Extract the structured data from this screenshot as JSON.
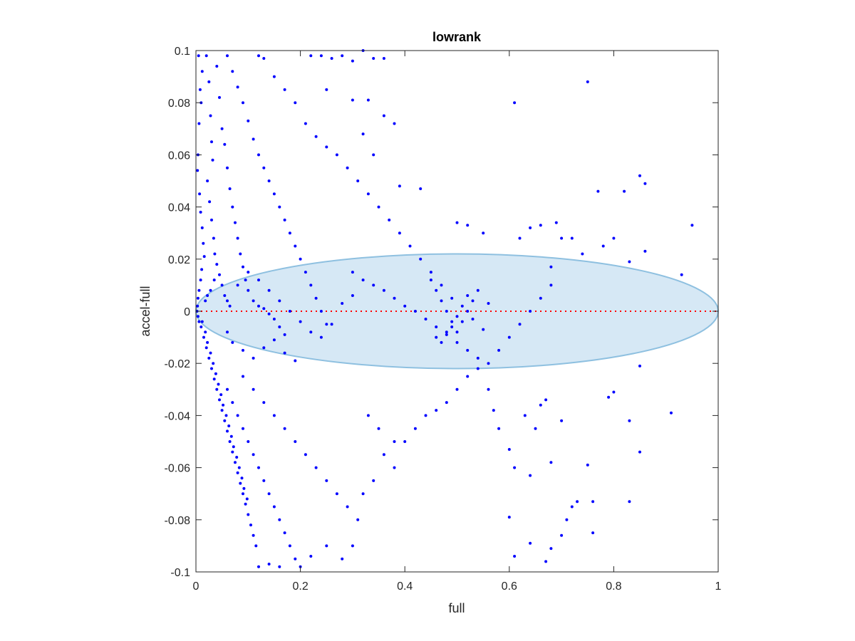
{
  "chart_data": {
    "type": "scatter",
    "title": "lowrank",
    "xlabel": "full",
    "ylabel": "accel-full",
    "xlim": [
      0,
      1
    ],
    "ylim": [
      -0.1,
      0.1
    ],
    "grid": false,
    "legend": "none",
    "x_ticks": [
      0,
      0.2,
      0.4,
      0.6,
      0.8,
      1
    ],
    "x_tick_labels": [
      "0",
      "0.2",
      "0.4",
      "0.6",
      "0.8",
      "1"
    ],
    "y_ticks": [
      -0.1,
      -0.08,
      -0.06,
      -0.04,
      -0.02,
      0,
      0.02,
      0.04,
      0.06,
      0.08,
      0.1
    ],
    "y_tick_labels": [
      "-0.1",
      "-0.08",
      "-0.06",
      "-0.04",
      "-0.02",
      "0",
      "0.02",
      "0.04",
      "0.06",
      "0.08",
      "0.1"
    ],
    "colors": {
      "points": "#0000ff",
      "ellipse_fill": "#d6e8f5",
      "ellipse_stroke": "#8ec0e0",
      "zero_line": "#ff0000",
      "axes": "#262626"
    },
    "ellipse": {
      "cx": 0.5,
      "cy": 0,
      "rx": 0.5,
      "ry": 0.022
    },
    "reference_line": {
      "y": 0,
      "x_from": 0,
      "x_to": 1
    },
    "points": [
      [
        0.005,
        0.098
      ],
      [
        0.012,
        0.092
      ],
      [
        0.008,
        0.085
      ],
      [
        0.01,
        0.08
      ],
      [
        0.006,
        0.072
      ],
      [
        0.004,
        0.06
      ],
      [
        0.003,
        0.054
      ],
      [
        0.007,
        0.045
      ],
      [
        0.009,
        0.038
      ],
      [
        0.012,
        0.032
      ],
      [
        0.014,
        0.026
      ],
      [
        0.016,
        0.021
      ],
      [
        0.011,
        0.016
      ],
      [
        0.009,
        0.012
      ],
      [
        0.006,
        0.008
      ],
      [
        0.004,
        0.005
      ],
      [
        0.003,
        0.002
      ],
      [
        0.002,
        0.0
      ],
      [
        0.004,
        -0.002
      ],
      [
        0.006,
        -0.004
      ],
      [
        0.02,
        0.098
      ],
      [
        0.025,
        0.088
      ],
      [
        0.028,
        0.075
      ],
      [
        0.03,
        0.065
      ],
      [
        0.032,
        0.058
      ],
      [
        0.022,
        0.05
      ],
      [
        0.026,
        0.042
      ],
      [
        0.03,
        0.035
      ],
      [
        0.034,
        0.028
      ],
      [
        0.036,
        0.022
      ],
      [
        0.04,
        0.018
      ],
      [
        0.045,
        0.014
      ],
      [
        0.05,
        0.01
      ],
      [
        0.055,
        0.006
      ],
      [
        0.06,
        0.004
      ],
      [
        0.065,
        0.002
      ],
      [
        0.035,
        0.012
      ],
      [
        0.028,
        0.008
      ],
      [
        0.022,
        0.006
      ],
      [
        0.018,
        0.004
      ],
      [
        0.04,
        0.094
      ],
      [
        0.045,
        0.082
      ],
      [
        0.05,
        0.07
      ],
      [
        0.055,
        0.064
      ],
      [
        0.06,
        0.055
      ],
      [
        0.065,
        0.047
      ],
      [
        0.07,
        0.04
      ],
      [
        0.075,
        0.034
      ],
      [
        0.08,
        0.028
      ],
      [
        0.085,
        0.022
      ],
      [
        0.09,
        0.017
      ],
      [
        0.095,
        0.012
      ],
      [
        0.1,
        0.008
      ],
      [
        0.11,
        0.004
      ],
      [
        0.12,
        0.002
      ],
      [
        0.13,
        0.001
      ],
      [
        0.14,
        -0.001
      ],
      [
        0.15,
        -0.003
      ],
      [
        0.16,
        -0.006
      ],
      [
        0.17,
        -0.009
      ],
      [
        0.06,
        0.098
      ],
      [
        0.07,
        0.092
      ],
      [
        0.08,
        0.086
      ],
      [
        0.09,
        0.08
      ],
      [
        0.1,
        0.073
      ],
      [
        0.11,
        0.066
      ],
      [
        0.12,
        0.06
      ],
      [
        0.13,
        0.055
      ],
      [
        0.14,
        0.05
      ],
      [
        0.15,
        0.045
      ],
      [
        0.16,
        0.04
      ],
      [
        0.17,
        0.035
      ],
      [
        0.18,
        0.03
      ],
      [
        0.19,
        0.025
      ],
      [
        0.2,
        0.02
      ],
      [
        0.21,
        0.015
      ],
      [
        0.22,
        0.01
      ],
      [
        0.23,
        0.005
      ],
      [
        0.24,
        0.0
      ],
      [
        0.25,
        -0.005
      ],
      [
        0.12,
        0.098
      ],
      [
        0.13,
        0.097
      ],
      [
        0.15,
        0.09
      ],
      [
        0.17,
        0.085
      ],
      [
        0.19,
        0.08
      ],
      [
        0.21,
        0.072
      ],
      [
        0.23,
        0.067
      ],
      [
        0.25,
        0.063
      ],
      [
        0.27,
        0.06
      ],
      [
        0.29,
        0.055
      ],
      [
        0.31,
        0.05
      ],
      [
        0.33,
        0.045
      ],
      [
        0.35,
        0.04
      ],
      [
        0.37,
        0.035
      ],
      [
        0.39,
        0.03
      ],
      [
        0.41,
        0.025
      ],
      [
        0.43,
        0.02
      ],
      [
        0.45,
        0.015
      ],
      [
        0.47,
        0.01
      ],
      [
        0.49,
        0.005
      ],
      [
        0.22,
        0.098
      ],
      [
        0.24,
        0.098
      ],
      [
        0.26,
        0.097
      ],
      [
        0.28,
        0.098
      ],
      [
        0.3,
        0.096
      ],
      [
        0.32,
        0.1
      ],
      [
        0.34,
        0.097
      ],
      [
        0.36,
        0.097
      ],
      [
        0.25,
        0.085
      ],
      [
        0.3,
        0.081
      ],
      [
        0.33,
        0.081
      ],
      [
        0.36,
        0.075
      ],
      [
        0.38,
        0.072
      ],
      [
        0.32,
        0.068
      ],
      [
        0.34,
        0.06
      ],
      [
        0.39,
        0.048
      ],
      [
        0.43,
        0.047
      ],
      [
        0.5,
        0.034
      ],
      [
        0.52,
        0.033
      ],
      [
        0.55,
        0.03
      ],
      [
        0.61,
        0.08
      ],
      [
        0.75,
        0.088
      ],
      [
        0.77,
        0.046
      ],
      [
        0.82,
        0.046
      ],
      [
        0.85,
        0.052
      ],
      [
        0.86,
        0.049
      ],
      [
        0.95,
        0.033
      ],
      [
        0.69,
        0.034
      ],
      [
        0.66,
        0.033
      ],
      [
        0.64,
        0.032
      ],
      [
        0.62,
        0.028
      ],
      [
        0.7,
        0.028
      ],
      [
        0.72,
        0.028
      ],
      [
        0.74,
        0.022
      ],
      [
        0.78,
        0.025
      ],
      [
        0.8,
        0.028
      ],
      [
        0.86,
        0.023
      ],
      [
        0.83,
        0.019
      ],
      [
        0.93,
        0.014
      ],
      [
        0.68,
        0.017
      ],
      [
        0.3,
        0.015
      ],
      [
        0.32,
        0.012
      ],
      [
        0.34,
        0.01
      ],
      [
        0.36,
        0.008
      ],
      [
        0.38,
        0.005
      ],
      [
        0.4,
        0.002
      ],
      [
        0.42,
        0.0
      ],
      [
        0.44,
        -0.003
      ],
      [
        0.46,
        -0.006
      ],
      [
        0.48,
        -0.009
      ],
      [
        0.5,
        -0.012
      ],
      [
        0.52,
        -0.015
      ],
      [
        0.54,
        -0.018
      ],
      [
        0.56,
        -0.02
      ],
      [
        0.58,
        -0.015
      ],
      [
        0.6,
        -0.01
      ],
      [
        0.62,
        -0.005
      ],
      [
        0.64,
        0.0
      ],
      [
        0.66,
        0.005
      ],
      [
        0.68,
        0.01
      ],
      [
        0.45,
        0.012
      ],
      [
        0.46,
        0.008
      ],
      [
        0.47,
        0.004
      ],
      [
        0.48,
        0.0
      ],
      [
        0.49,
        -0.004
      ],
      [
        0.5,
        -0.008
      ],
      [
        0.51,
        -0.004
      ],
      [
        0.52,
        0.0
      ],
      [
        0.53,
        0.004
      ],
      [
        0.54,
        0.008
      ],
      [
        0.46,
        -0.01
      ],
      [
        0.47,
        -0.012
      ],
      [
        0.48,
        -0.008
      ],
      [
        0.49,
        -0.006
      ],
      [
        0.5,
        -0.002
      ],
      [
        0.51,
        0.002
      ],
      [
        0.52,
        0.006
      ],
      [
        0.53,
        -0.003
      ],
      [
        0.55,
        -0.007
      ],
      [
        0.56,
        0.003
      ],
      [
        0.12,
        0.012
      ],
      [
        0.14,
        0.008
      ],
      [
        0.16,
        0.004
      ],
      [
        0.18,
        0.0
      ],
      [
        0.2,
        -0.004
      ],
      [
        0.22,
        -0.008
      ],
      [
        0.24,
        -0.01
      ],
      [
        0.26,
        -0.005
      ],
      [
        0.28,
        0.003
      ],
      [
        0.3,
        0.006
      ],
      [
        0.1,
        0.015
      ],
      [
        0.08,
        0.01
      ],
      [
        0.06,
        -0.008
      ],
      [
        0.07,
        -0.012
      ],
      [
        0.09,
        -0.015
      ],
      [
        0.11,
        -0.018
      ],
      [
        0.13,
        -0.014
      ],
      [
        0.15,
        -0.011
      ],
      [
        0.17,
        -0.016
      ],
      [
        0.19,
        -0.019
      ],
      [
        0.01,
        -0.006
      ],
      [
        0.015,
        -0.01
      ],
      [
        0.02,
        -0.014
      ],
      [
        0.025,
        -0.018
      ],
      [
        0.03,
        -0.022
      ],
      [
        0.035,
        -0.026
      ],
      [
        0.04,
        -0.03
      ],
      [
        0.045,
        -0.034
      ],
      [
        0.05,
        -0.038
      ],
      [
        0.055,
        -0.042
      ],
      [
        0.06,
        -0.046
      ],
      [
        0.065,
        -0.05
      ],
      [
        0.07,
        -0.054
      ],
      [
        0.075,
        -0.058
      ],
      [
        0.08,
        -0.062
      ],
      [
        0.085,
        -0.066
      ],
      [
        0.09,
        -0.07
      ],
      [
        0.095,
        -0.074
      ],
      [
        0.1,
        -0.078
      ],
      [
        0.105,
        -0.082
      ],
      [
        0.012,
        -0.004
      ],
      [
        0.018,
        -0.008
      ],
      [
        0.022,
        -0.012
      ],
      [
        0.028,
        -0.016
      ],
      [
        0.033,
        -0.02
      ],
      [
        0.038,
        -0.024
      ],
      [
        0.043,
        -0.028
      ],
      [
        0.048,
        -0.032
      ],
      [
        0.052,
        -0.036
      ],
      [
        0.058,
        -0.04
      ],
      [
        0.063,
        -0.044
      ],
      [
        0.068,
        -0.048
      ],
      [
        0.072,
        -0.052
      ],
      [
        0.078,
        -0.056
      ],
      [
        0.083,
        -0.06
      ],
      [
        0.088,
        -0.064
      ],
      [
        0.092,
        -0.068
      ],
      [
        0.098,
        -0.072
      ],
      [
        0.11,
        -0.086
      ],
      [
        0.115,
        -0.09
      ],
      [
        0.06,
        -0.03
      ],
      [
        0.07,
        -0.035
      ],
      [
        0.08,
        -0.04
      ],
      [
        0.09,
        -0.045
      ],
      [
        0.1,
        -0.05
      ],
      [
        0.11,
        -0.055
      ],
      [
        0.12,
        -0.06
      ],
      [
        0.13,
        -0.065
      ],
      [
        0.14,
        -0.07
      ],
      [
        0.15,
        -0.075
      ],
      [
        0.16,
        -0.08
      ],
      [
        0.17,
        -0.085
      ],
      [
        0.18,
        -0.09
      ],
      [
        0.19,
        -0.095
      ],
      [
        0.12,
        -0.098
      ],
      [
        0.14,
        -0.097
      ],
      [
        0.16,
        -0.098
      ],
      [
        0.2,
        -0.098
      ],
      [
        0.22,
        -0.094
      ],
      [
        0.25,
        -0.09
      ],
      [
        0.09,
        -0.025
      ],
      [
        0.11,
        -0.03
      ],
      [
        0.13,
        -0.035
      ],
      [
        0.15,
        -0.04
      ],
      [
        0.17,
        -0.045
      ],
      [
        0.19,
        -0.05
      ],
      [
        0.21,
        -0.055
      ],
      [
        0.23,
        -0.06
      ],
      [
        0.25,
        -0.065
      ],
      [
        0.27,
        -0.07
      ],
      [
        0.29,
        -0.075
      ],
      [
        0.31,
        -0.08
      ],
      [
        0.28,
        -0.095
      ],
      [
        0.3,
        -0.09
      ],
      [
        0.32,
        -0.07
      ],
      [
        0.34,
        -0.065
      ],
      [
        0.36,
        -0.055
      ],
      [
        0.38,
        -0.05
      ],
      [
        0.33,
        -0.04
      ],
      [
        0.35,
        -0.045
      ],
      [
        0.38,
        -0.06
      ],
      [
        0.4,
        -0.05
      ],
      [
        0.42,
        -0.045
      ],
      [
        0.44,
        -0.04
      ],
      [
        0.46,
        -0.038
      ],
      [
        0.48,
        -0.035
      ],
      [
        0.5,
        -0.03
      ],
      [
        0.52,
        -0.025
      ],
      [
        0.54,
        -0.022
      ],
      [
        0.56,
        -0.03
      ],
      [
        0.58,
        -0.045
      ],
      [
        0.6,
        -0.053
      ],
      [
        0.61,
        -0.06
      ],
      [
        0.63,
        -0.04
      ],
      [
        0.64,
        -0.063
      ],
      [
        0.65,
        -0.045
      ],
      [
        0.66,
        -0.036
      ],
      [
        0.67,
        -0.034
      ],
      [
        0.68,
        -0.058
      ],
      [
        0.7,
        -0.042
      ],
      [
        0.6,
        -0.079
      ],
      [
        0.61,
        -0.094
      ],
      [
        0.64,
        -0.089
      ],
      [
        0.67,
        -0.096
      ],
      [
        0.68,
        -0.091
      ],
      [
        0.7,
        -0.086
      ],
      [
        0.71,
        -0.08
      ],
      [
        0.72,
        -0.075
      ],
      [
        0.73,
        -0.073
      ],
      [
        0.75,
        -0.059
      ],
      [
        0.76,
        -0.073
      ],
      [
        0.76,
        -0.085
      ],
      [
        0.79,
        -0.033
      ],
      [
        0.8,
        -0.031
      ],
      [
        0.83,
        -0.042
      ],
      [
        0.83,
        -0.073
      ],
      [
        0.85,
        -0.054
      ],
      [
        0.85,
        -0.021
      ],
      [
        0.91,
        -0.039
      ],
      [
        0.57,
        -0.038
      ]
    ]
  }
}
